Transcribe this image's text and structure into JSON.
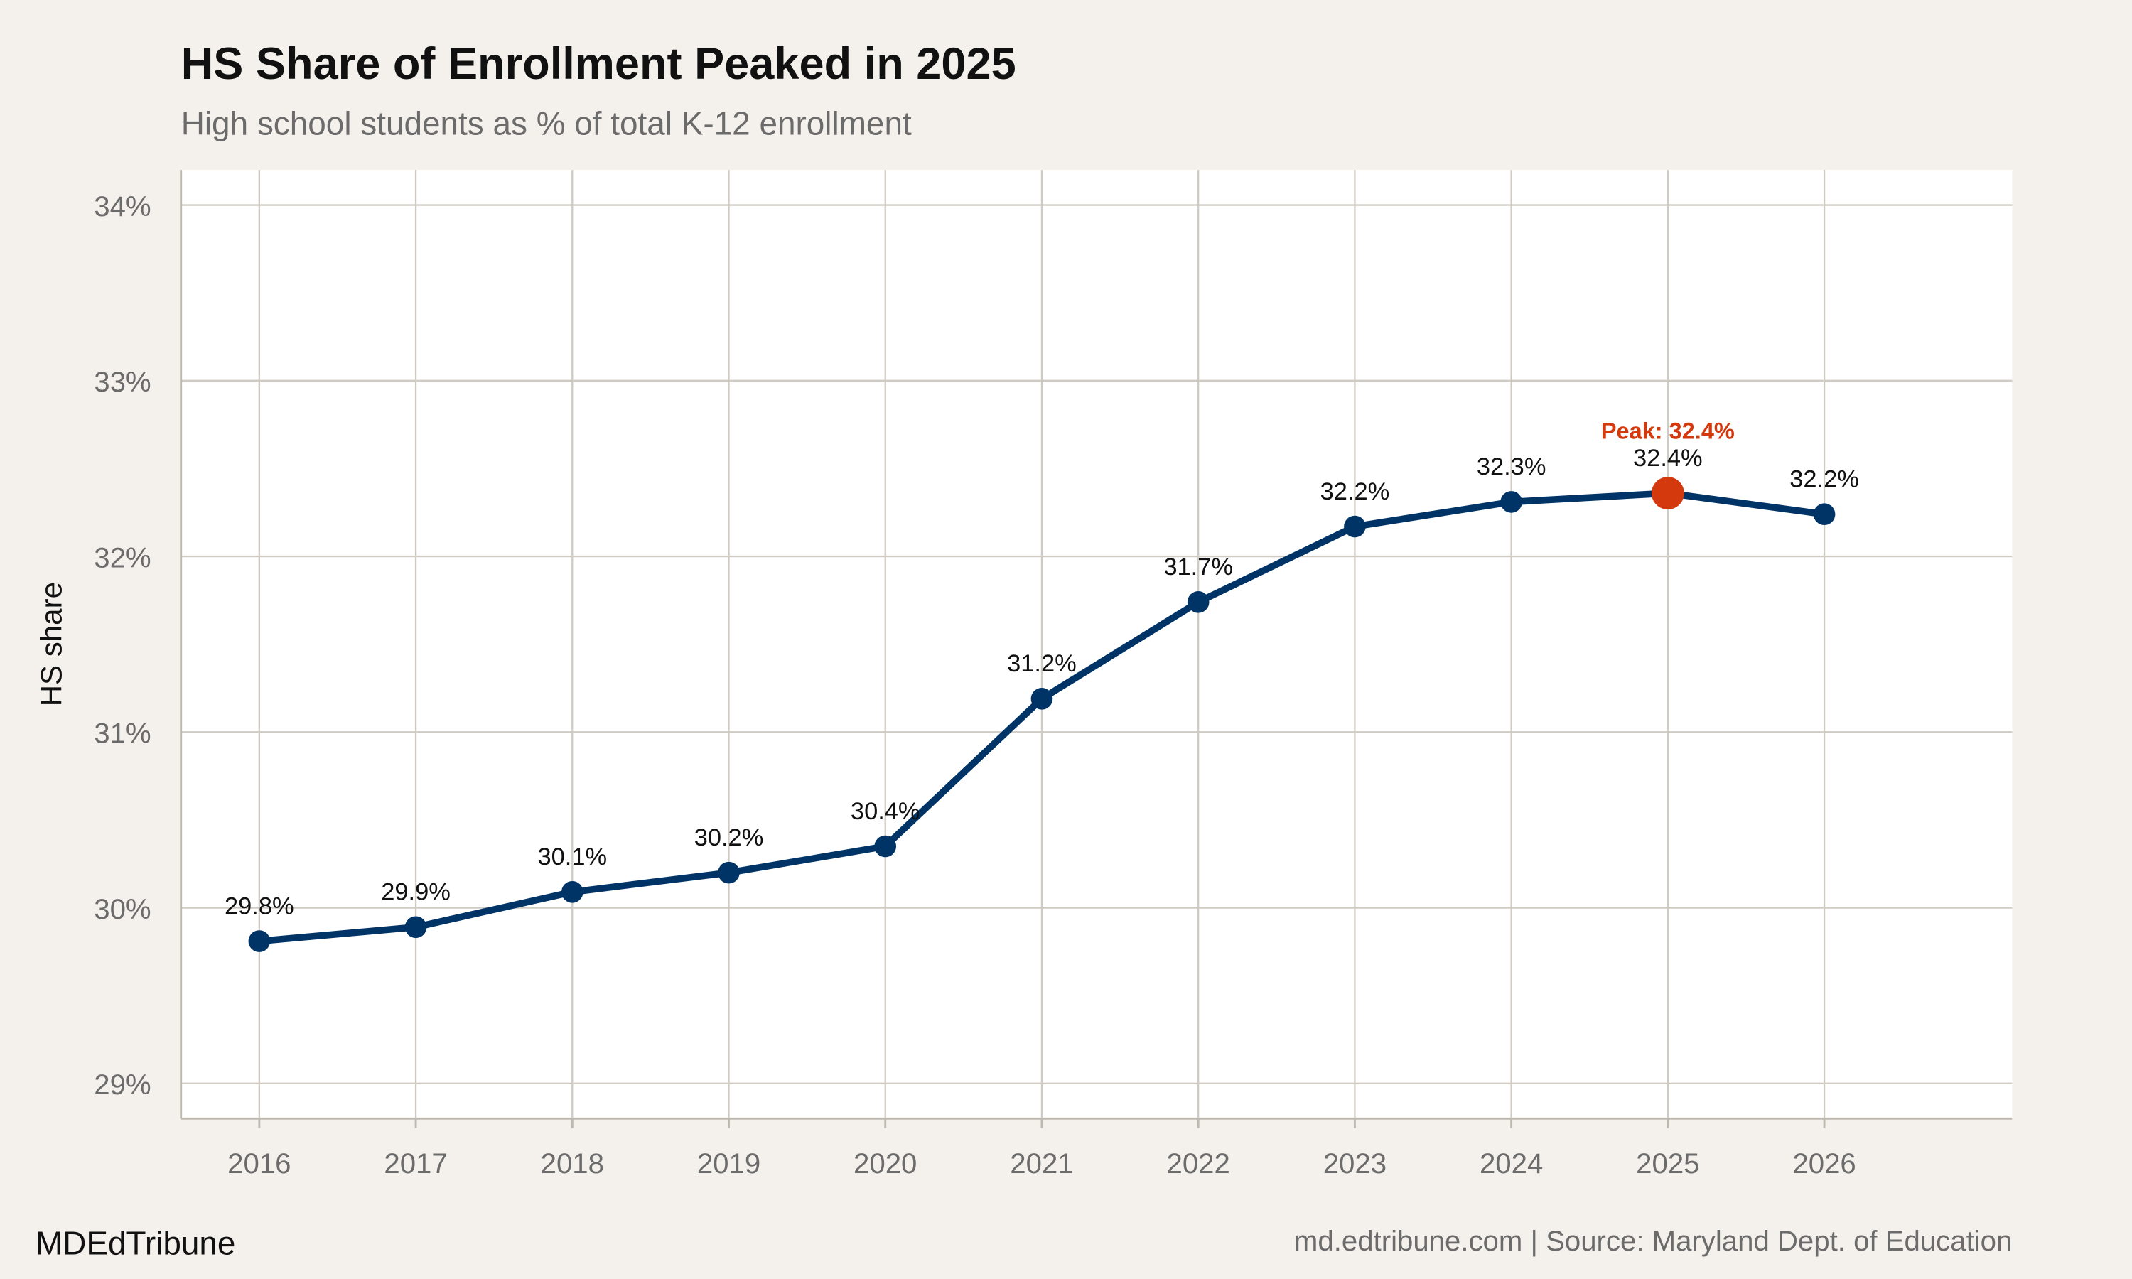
{
  "title": "HS Share of Enrollment Peaked in 2025",
  "subtitle": "High school students as % of total K-12 enrollment",
  "footer": {
    "brand": "MDEdTribune",
    "source": "md.edtribune.com | Source: Maryland Dept. of Education"
  },
  "colors": {
    "background": "#f4f1ec",
    "panel": "#ffffff",
    "line": "#003366",
    "highlight": "#d4390e",
    "grid": "#cfcac2"
  },
  "chart_data": {
    "type": "line",
    "title": "HS Share of Enrollment Peaked in 2025",
    "subtitle": "High school students as % of total K-12 enrollment",
    "xlabel": "",
    "ylabel": "HS share",
    "x": [
      2016,
      2017,
      2018,
      2019,
      2020,
      2021,
      2022,
      2023,
      2024,
      2025,
      2026
    ],
    "values": [
      29.81,
      29.89,
      30.09,
      30.2,
      30.35,
      31.19,
      31.74,
      32.17,
      32.31,
      32.36,
      32.24
    ],
    "data_labels": [
      "29.8%",
      "29.9%",
      "30.1%",
      "30.2%",
      "30.4%",
      "31.2%",
      "31.7%",
      "32.2%",
      "32.3%",
      "32.4%",
      "32.2%"
    ],
    "x_ticks": [
      "2016",
      "2017",
      "2018",
      "2019",
      "2020",
      "2021",
      "2022",
      "2023",
      "2024",
      "2025",
      "2026"
    ],
    "y_ticks": [
      29,
      30,
      31,
      32,
      33,
      34
    ],
    "y_tick_labels": [
      "29%",
      "30%",
      "31%",
      "32%",
      "33%",
      "34%"
    ],
    "ylim": [
      28.8,
      34.2
    ],
    "xlim": [
      2015.5,
      2027.2
    ],
    "grid": true,
    "legend": "none",
    "annotation": {
      "x": 2025,
      "text": "Peak: 32.4%"
    }
  }
}
